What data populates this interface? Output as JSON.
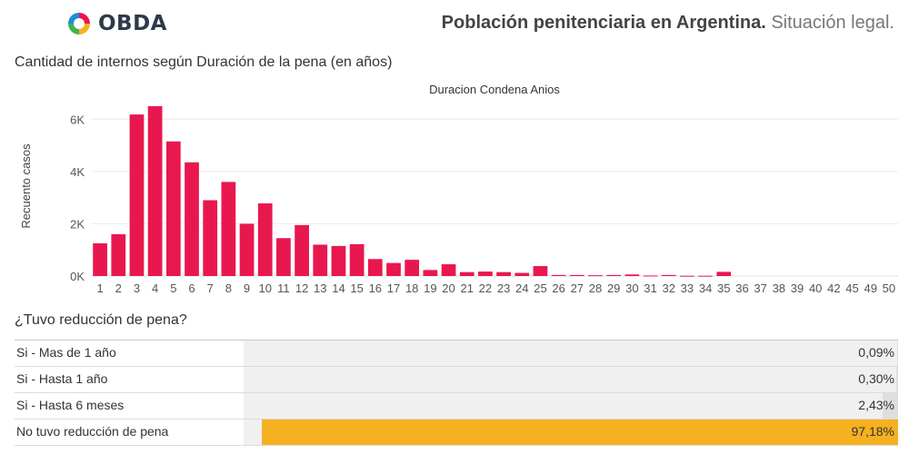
{
  "header": {
    "logo_text": "OBDA",
    "title_bold": "Población penitenciaria en Argentina.",
    "title_rest": "Situación legal."
  },
  "chart_data": {
    "type": "bar",
    "title": "Cantidad de internos según Duración de la pena (en años)",
    "top_label": "Duracion Condena Anios",
    "ylabel": "Recuento casos",
    "ylim": [
      0,
      6600
    ],
    "yticks": [
      0,
      2000,
      4000,
      6000
    ],
    "ytick_labels": [
      "0K",
      "2K",
      "4K",
      "6K"
    ],
    "grid": true,
    "bar_color": "#e8184f",
    "categories": [
      "1",
      "2",
      "3",
      "4",
      "5",
      "6",
      "7",
      "8",
      "9",
      "10",
      "11",
      "12",
      "13",
      "14",
      "15",
      "16",
      "17",
      "18",
      "19",
      "20",
      "21",
      "22",
      "23",
      "24",
      "25",
      "26",
      "27",
      "28",
      "29",
      "30",
      "31",
      "32",
      "33",
      "34",
      "35",
      "36",
      "37",
      "38",
      "39",
      "40",
      "42",
      "45",
      "49",
      "50"
    ],
    "values": [
      1250,
      1600,
      6180,
      6500,
      5150,
      4350,
      2900,
      3600,
      2000,
      2780,
      1450,
      1950,
      1200,
      1150,
      1220,
      650,
      500,
      620,
      230,
      450,
      150,
      170,
      150,
      120,
      380,
      40,
      40,
      30,
      40,
      60,
      20,
      40,
      10,
      10,
      160,
      0,
      0,
      0,
      0,
      0,
      0,
      0,
      0,
      0
    ]
  },
  "reduction": {
    "title": "¿Tuvo reducción de pena?",
    "highlight_color": "#f5b11f",
    "rows": [
      {
        "label": "Si - Mas de 1 año",
        "value": "0,09%",
        "fraction": 0.0009,
        "highlight": false
      },
      {
        "label": "Si - Hasta 1 año",
        "value": "0,30%",
        "fraction": 0.003,
        "highlight": false
      },
      {
        "label": "Si - Hasta 6 meses",
        "value": "2,43%",
        "fraction": 0.0243,
        "highlight": false
      },
      {
        "label": "No tuvo reducción de pena",
        "value": "97,18%",
        "fraction": 0.9718,
        "highlight": true
      }
    ]
  }
}
